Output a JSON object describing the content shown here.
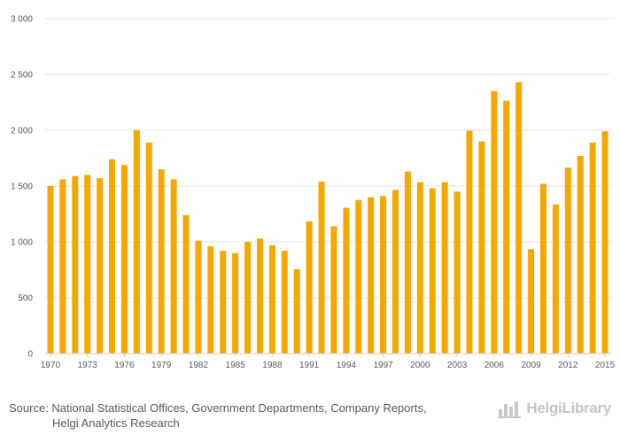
{
  "chart_data": {
    "type": "bar",
    "title": "",
    "xlabel": "",
    "ylabel": "",
    "ylim": [
      0,
      3000
    ],
    "yticks": [
      0,
      500,
      1000,
      1500,
      2000,
      2500,
      3000
    ],
    "ytick_labels": [
      "0",
      "500",
      "1 000",
      "1 500",
      "2 000",
      "2 500",
      "3 000"
    ],
    "xtick_labels": [
      "1970",
      "1973",
      "1976",
      "1979",
      "1982",
      "1985",
      "1988",
      "1991",
      "1994",
      "1997",
      "2000",
      "2003",
      "2006",
      "2009",
      "2012",
      "2015"
    ],
    "grid": true,
    "legend": "none",
    "bar_color": "#f5a800",
    "grid_color": "#e6e6e6",
    "categories": [
      "1970",
      "1971",
      "1972",
      "1973",
      "1974",
      "1975",
      "1976",
      "1977",
      "1978",
      "1979",
      "1980",
      "1981",
      "1982",
      "1983",
      "1984",
      "1985",
      "1986",
      "1987",
      "1988",
      "1989",
      "1990",
      "1991",
      "1992",
      "1993",
      "1994",
      "1995",
      "1996",
      "1997",
      "1998",
      "1999",
      "2000",
      "2001",
      "2002",
      "2003",
      "2004",
      "2005",
      "2006",
      "2007",
      "2008",
      "2009",
      "2010",
      "2011",
      "2012",
      "2013",
      "2014",
      "2015"
    ],
    "values": [
      1500,
      1560,
      1590,
      1600,
      1570,
      1740,
      1690,
      2000,
      1890,
      1650,
      1560,
      1240,
      1010,
      960,
      920,
      900,
      1000,
      1030,
      970,
      920,
      755,
      1185,
      1540,
      1140,
      1305,
      1375,
      1400,
      1410,
      1465,
      1630,
      1535,
      1480,
      1535,
      1450,
      1995,
      1900,
      2350,
      2265,
      2430,
      935,
      1520,
      1335,
      1665,
      1770,
      1890,
      1990
    ]
  },
  "footer": {
    "source_line1": "Source: National Statistical Offices, Government Departments, Company Reports,",
    "source_line2": "Helgi Analytics Research",
    "brand_name": "HelgiLibrary"
  }
}
